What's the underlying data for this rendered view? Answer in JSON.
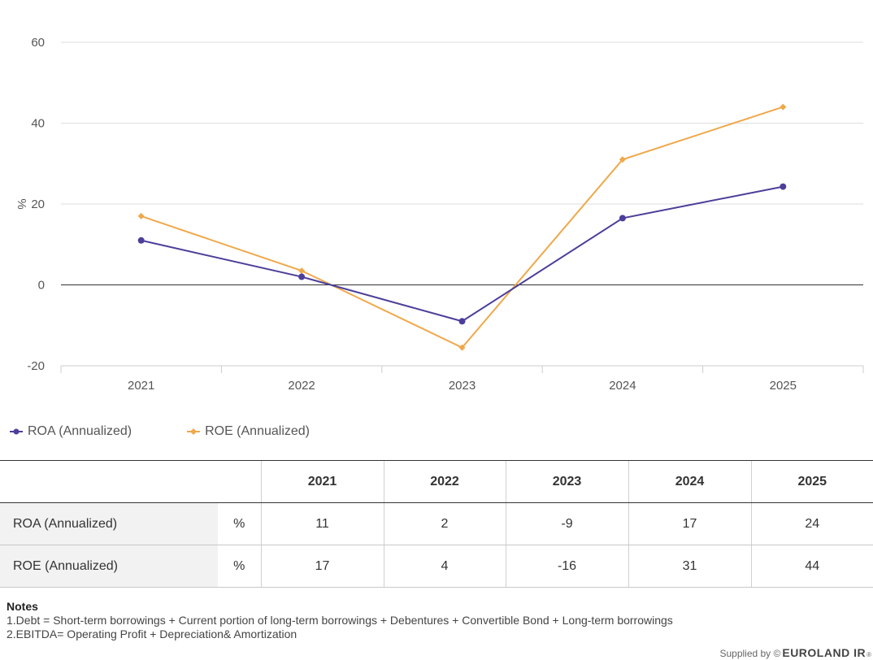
{
  "chart_data": {
    "type": "line",
    "title": "",
    "xlabel": "",
    "ylabel": "%",
    "categories": [
      "2021",
      "2022",
      "2023",
      "2024",
      "2025"
    ],
    "ylim": [
      -20,
      60
    ],
    "yticks": [
      "-20",
      "0",
      "20",
      "40",
      "60"
    ],
    "grid": true,
    "legend_position": "bottom-left",
    "series": [
      {
        "name": "ROA (Annualized)",
        "color": "#4b3f9a",
        "marker": "circle",
        "values": [
          11,
          2,
          -9,
          16.5,
          24.3
        ]
      },
      {
        "name": "ROE (Annualized)",
        "color": "#f0a84a",
        "marker": "diamond",
        "values": [
          17,
          3.5,
          -15.5,
          31,
          44
        ]
      }
    ]
  },
  "table": {
    "headers": [
      "2021",
      "2022",
      "2023",
      "2024",
      "2025"
    ],
    "rows": [
      {
        "name": "ROA (Annualized)",
        "unit": "%",
        "values": [
          "11",
          "2",
          "-9",
          "17",
          "24"
        ]
      },
      {
        "name": "ROE (Annualized)",
        "unit": "%",
        "values": [
          "17",
          "4",
          "-16",
          "31",
          "44"
        ]
      }
    ]
  },
  "notes": {
    "title": "Notes",
    "lines": [
      "1.Debt = Short-term borrowings + Current portion of long-term borrowings + Debentures + Convertible Bond + Long-term borrowings",
      "2.EBITDA= Operating Profit + Depreciation& Amortization"
    ]
  },
  "footer": {
    "supplied_by": "Supplied by ©",
    "brand": "EUROLAND IR",
    "registered": "®"
  }
}
